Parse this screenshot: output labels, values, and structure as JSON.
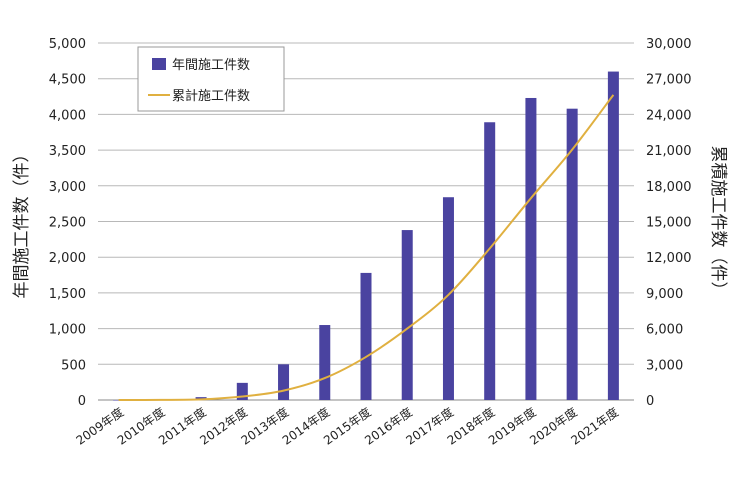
{
  "chart_data": {
    "type": "bar+line",
    "categories": [
      "2009年度",
      "2010年度",
      "2011年度",
      "2012年度",
      "2013年度",
      "2014年度",
      "2015年度",
      "2016年度",
      "2017年度",
      "2018年度",
      "2019年度",
      "2020年度",
      "2021年度"
    ],
    "series": [
      {
        "name": "年間施工件数",
        "type": "bar",
        "axis": "left",
        "color": "#4a43a0",
        "values": [
          0,
          10,
          40,
          240,
          500,
          1050,
          1780,
          2380,
          2840,
          3890,
          4230,
          4080,
          4600
        ]
      },
      {
        "name": "累計施工件数",
        "type": "line",
        "axis": "right",
        "color": "#e0b040",
        "values": [
          0,
          10,
          50,
          290,
          790,
          1840,
          3620,
          6000,
          8840,
          12730,
          16960,
          21040,
          25640
        ]
      }
    ],
    "y_left": {
      "label": "年間施工件数（件）",
      "lim": [
        0,
        5000
      ],
      "ticks": [
        "0",
        "500",
        "1,000",
        "1,500",
        "2,000",
        "2,500",
        "3,000",
        "3,500",
        "4,000",
        "4,500",
        "5,000"
      ]
    },
    "y_right": {
      "label": "累積施工件数（件）",
      "lim": [
        0,
        30000
      ],
      "ticks": [
        "0",
        "3,000",
        "6,000",
        "9,000",
        "12,000",
        "15,000",
        "18,000",
        "21,000",
        "24,000",
        "27,000",
        "30,000"
      ]
    },
    "grid": true,
    "legend": "top-left"
  }
}
